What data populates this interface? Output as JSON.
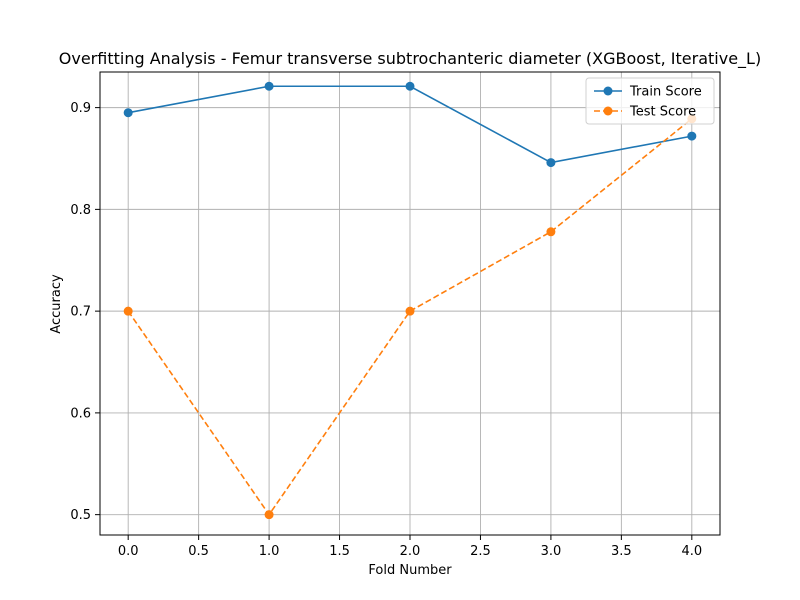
{
  "chart_data": {
    "type": "line",
    "title": "Overfitting Analysis - Femur transverse subtrochanteric diameter (XGBoost, Iterative_L)",
    "xlabel": "Fold Number",
    "ylabel": "Accuracy",
    "x": [
      0,
      1,
      2,
      3,
      4
    ],
    "xlim": [
      -0.2,
      4.2
    ],
    "ylim": [
      0.48,
      0.935
    ],
    "xticks": [
      0.0,
      0.5,
      1.0,
      1.5,
      2.0,
      2.5,
      3.0,
      3.5,
      4.0
    ],
    "xtick_labels": [
      "0.0",
      "0.5",
      "1.0",
      "1.5",
      "2.0",
      "2.5",
      "3.0",
      "3.5",
      "4.0"
    ],
    "yticks": [
      0.5,
      0.6,
      0.7,
      0.8,
      0.9
    ],
    "ytick_labels": [
      "0.5",
      "0.6",
      "0.7",
      "0.8",
      "0.9"
    ],
    "grid": true,
    "legend_position": "top-right",
    "series": [
      {
        "name": "Train Score",
        "values": [
          0.895,
          0.921,
          0.921,
          0.846,
          0.872
        ],
        "color": "#1f77b4",
        "line_style": "solid",
        "marker": "circle"
      },
      {
        "name": "Test Score",
        "values": [
          0.7,
          0.5,
          0.7,
          0.778,
          0.889
        ],
        "color": "#ff7f0e",
        "line_style": "dashed",
        "marker": "circle"
      }
    ]
  }
}
